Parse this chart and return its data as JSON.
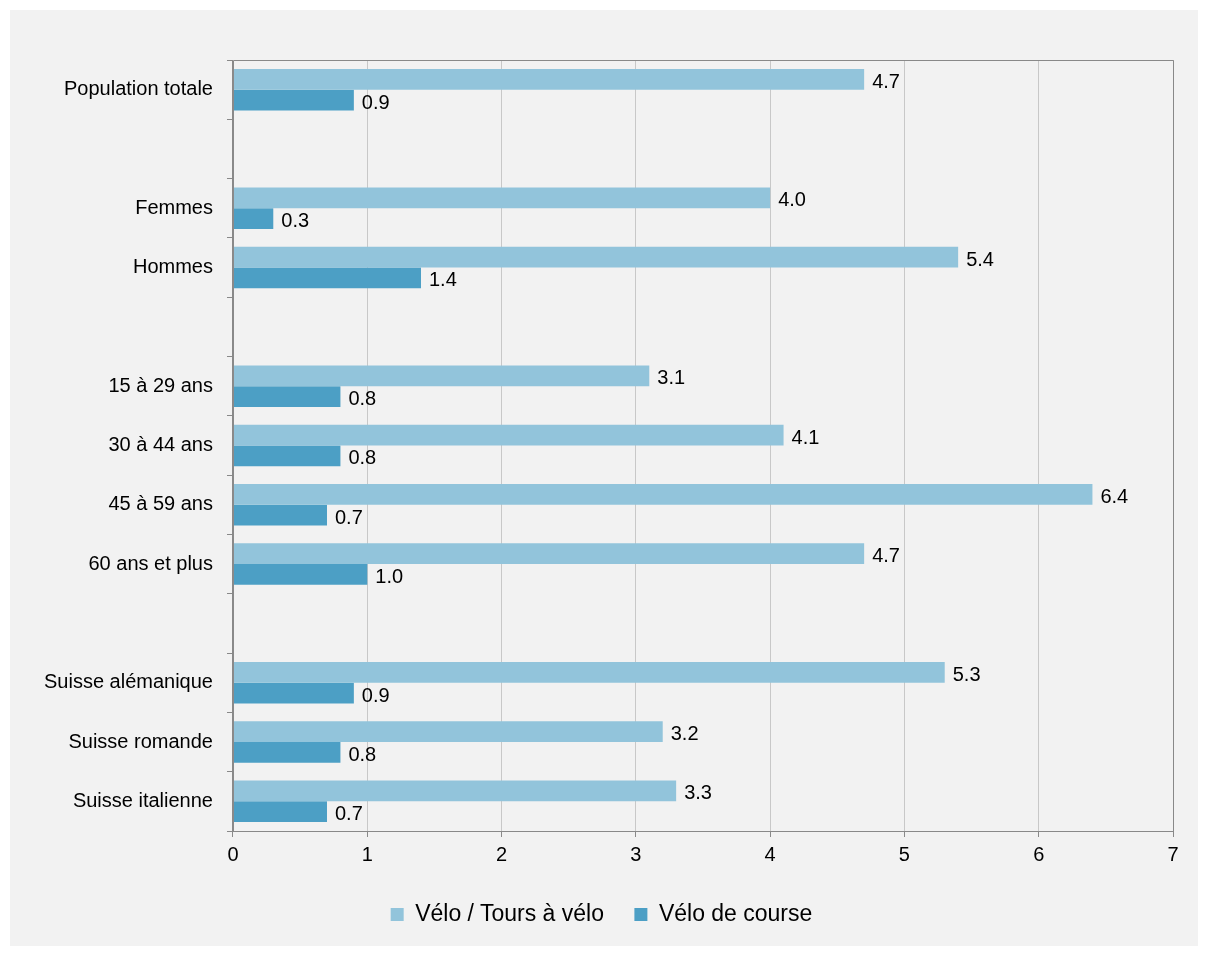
{
  "chart_data": {
    "type": "bar",
    "orientation": "horizontal",
    "categories": [
      "Population totale",
      null,
      "Femmes",
      "Hommes",
      null,
      "15 à 29 ans",
      "30 à 44 ans",
      "45 à 59 ans",
      "60 ans et plus",
      null,
      "Suisse alémanique",
      "Suisse romande",
      "Suisse italienne"
    ],
    "series": [
      {
        "name": "Vélo / Tours à vélo",
        "color": "#92c4db",
        "values": [
          4.7,
          null,
          4.0,
          5.4,
          null,
          3.1,
          4.1,
          6.4,
          4.7,
          null,
          5.3,
          3.2,
          3.3
        ],
        "value_labels": [
          "4.7",
          null,
          "4.0",
          "5.4",
          null,
          "3.1",
          "4.1",
          "6.4",
          "4.7",
          null,
          "5.3",
          "3.2",
          "3.3"
        ]
      },
      {
        "name": "Vélo de course",
        "color": "#4c9fc5",
        "values": [
          0.9,
          null,
          0.3,
          1.4,
          null,
          0.8,
          0.8,
          0.7,
          1.0,
          null,
          0.9,
          0.8,
          0.7
        ],
        "value_labels": [
          "0.9",
          null,
          "0.3",
          "1.4",
          null,
          "0.8",
          "0.8",
          "0.7",
          "1.0",
          null,
          "0.9",
          "0.8",
          "0.7"
        ]
      }
    ],
    "xlim": [
      0,
      7
    ],
    "xticks": [
      0,
      1,
      2,
      3,
      4,
      5,
      6,
      7
    ],
    "grid": "x",
    "legend": "bottom"
  }
}
